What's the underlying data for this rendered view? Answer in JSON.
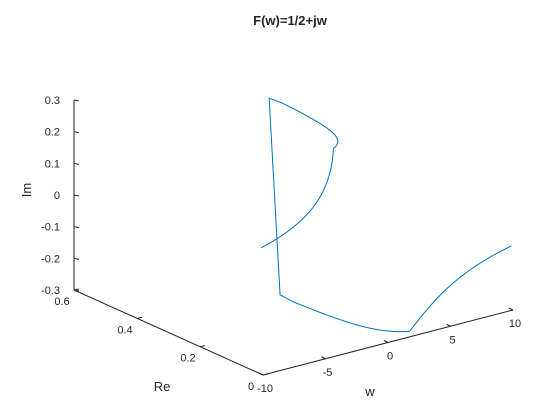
{
  "chart_data": {
    "type": "line3d",
    "title": "F(w)=1/2+jw",
    "xlabel": "w",
    "ylabel": "Re",
    "zlabel": "Im",
    "xlim": [
      -10,
      10
    ],
    "ylim": [
      0,
      0.6
    ],
    "zlim": [
      -0.3,
      0.3
    ],
    "x_ticks": [
      -10,
      -5,
      0,
      5,
      10
    ],
    "y_ticks": [
      0,
      0.2,
      0.4,
      0.6
    ],
    "z_ticks": [
      -0.3,
      -0.2,
      -0.1,
      0,
      0.1,
      0.2,
      0.3
    ],
    "x_tick_labels": [
      "-10",
      "-5",
      "0",
      "5",
      "10"
    ],
    "y_tick_labels": [
      "0",
      "0.2",
      "0.4",
      "0.6"
    ],
    "z_tick_labels": [
      "-0.3",
      "-0.2",
      "-0.1",
      "0",
      "0.1",
      "0.2",
      "0.3"
    ],
    "grid": false,
    "series": [
      {
        "color": "#0072BD",
        "x": [
          -10,
          -8,
          -6,
          -4,
          -3,
          -2,
          -1,
          -0.5,
          0,
          0.5,
          1,
          2,
          3,
          4,
          6,
          8,
          10
        ],
        "y": [
          0.005,
          0.0078,
          0.0137,
          0.0303,
          0.0526,
          0.1176,
          0.4,
          1.0,
          2.0,
          1.0,
          0.4,
          0.1176,
          0.0526,
          0.0303,
          0.0137,
          0.0078,
          0.005
        ],
        "z": [
          0.0998,
          0.1246,
          0.1644,
          0.2424,
          0.3158,
          0.4706,
          0.8,
          1.0,
          0.0,
          -1.0,
          -0.8,
          -0.4706,
          -0.3158,
          -0.2424,
          -0.1644,
          -0.1246,
          -0.0998
        ]
      }
    ]
  }
}
